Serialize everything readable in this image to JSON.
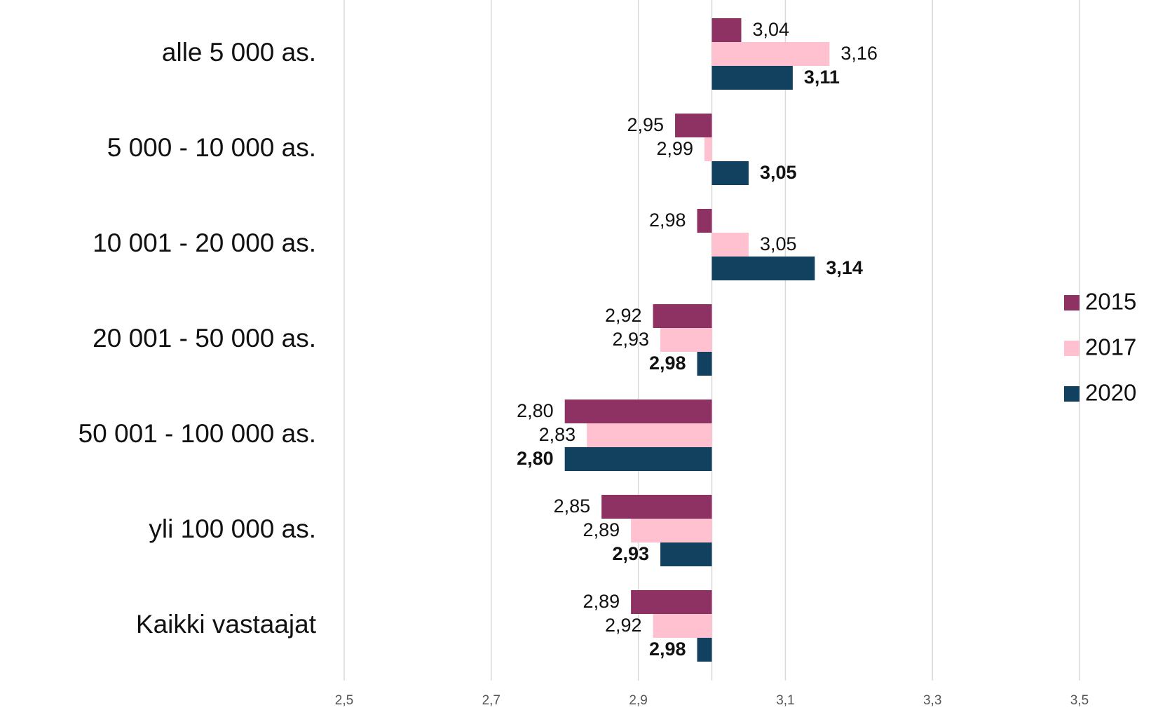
{
  "chart_data": {
    "type": "bar",
    "orientation": "horizontal",
    "categories": [
      "alle 5 000 as.",
      "5 000 - 10 000 as.",
      "10 001 - 20 000 as.",
      "20 001 - 50 000 as.",
      "50 001  - 100 000 as.",
      "yli 100 000 as.",
      "Kaikki vastaajat"
    ],
    "series": [
      {
        "name": "2015",
        "color": "#8e3163",
        "values": [
          3.04,
          2.95,
          2.98,
          2.92,
          2.8,
          2.85,
          2.89
        ],
        "value_labels": [
          "3,04",
          "2,95",
          "2,98",
          "2,92",
          "2,80",
          "2,85",
          "2,89"
        ]
      },
      {
        "name": "2017",
        "color": "#ffc0cf",
        "values": [
          3.16,
          2.99,
          3.05,
          2.93,
          2.83,
          2.89,
          2.92
        ],
        "value_labels": [
          "3,16",
          "2,99",
          "3,05",
          "2,93",
          "2,83",
          "2,89",
          "2,92"
        ]
      },
      {
        "name": "2020",
        "color": "#12405f",
        "values": [
          3.11,
          3.05,
          3.14,
          2.98,
          2.8,
          2.93,
          2.98
        ],
        "value_labels": [
          "3,11",
          "3,05",
          "3,14",
          "2,98",
          "2,80",
          "2,93",
          "2,98"
        ]
      }
    ],
    "baseline": 3,
    "xlim": [
      2.5,
      3.5
    ],
    "xticks": [
      {
        "value": 2.5,
        "label": "2,5"
      },
      {
        "value": 2.7,
        "label": "2,7"
      },
      {
        "value": 2.9,
        "label": "2,9"
      },
      {
        "value": 3.1,
        "label": "3,1"
      },
      {
        "value": 3.3,
        "label": "3,3"
      },
      {
        "value": 3.5,
        "label": "3,5"
      }
    ],
    "grid": true,
    "legend": "right"
  }
}
